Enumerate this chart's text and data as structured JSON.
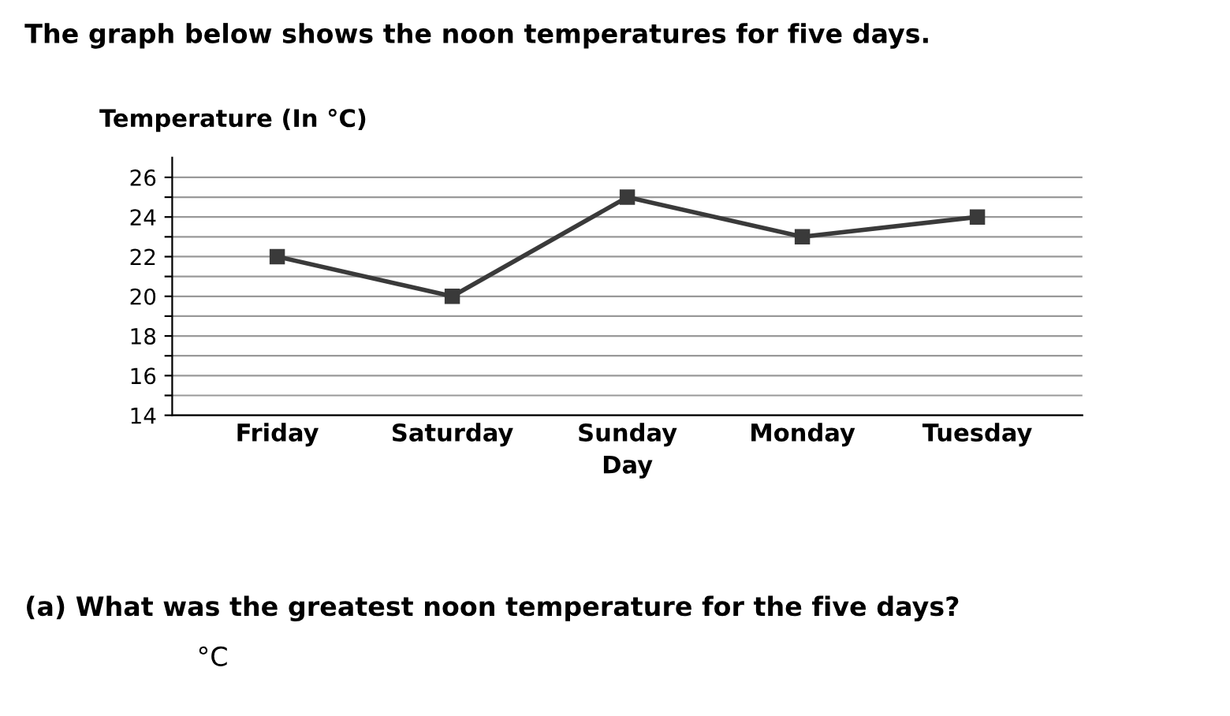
{
  "chart_data": {
    "type": "line",
    "title": "The graph below shows the noon temperatures for five days.",
    "ylabel": "Temperature (In °C)",
    "xlabel": "Day",
    "categories": [
      "Friday",
      "Saturday",
      "Sunday",
      "Monday",
      "Tuesday"
    ],
    "series": [
      {
        "color": "#3a3a3a",
        "values": [
          22,
          20,
          25,
          23,
          24
        ]
      }
    ],
    "ylim": [
      14,
      27
    ],
    "yticks": [
      14,
      {
        "value": 15,
        "label": null
      },
      16,
      {
        "value": 17,
        "label": null
      },
      18,
      {
        "value": 19,
        "label": null
      },
      20,
      {
        "value": 21,
        "label": null
      },
      22,
      {
        "value": 23,
        "label": null
      },
      24,
      {
        "value": 25,
        "label": null
      },
      26
    ],
    "grid": "y",
    "marker": "square",
    "line_style": "solid",
    "annotations": [
      "(a) What was the greatest noon temperature for the five days?",
      "°C"
    ]
  }
}
